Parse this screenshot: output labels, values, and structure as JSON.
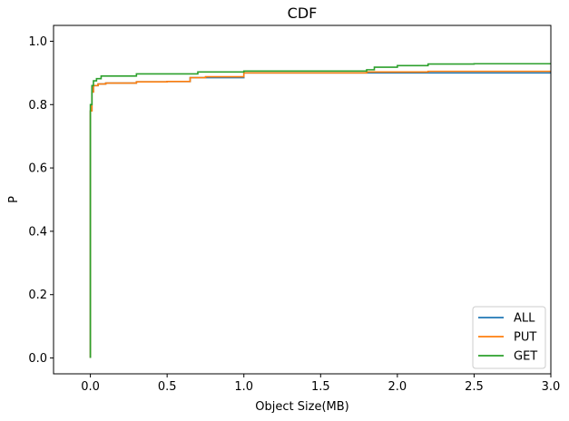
{
  "chart_data": {
    "type": "line",
    "title": "CDF",
    "xlabel": "Object Size(MB)",
    "ylabel": "P",
    "xlim": [
      -0.24,
      3.0
    ],
    "ylim": [
      -0.05,
      1.05
    ],
    "x_ticks": [
      0.0,
      0.5,
      1.0,
      1.5,
      2.0,
      2.5,
      3.0
    ],
    "x_tick_labels": [
      "0.0",
      "0.5",
      "1.0",
      "1.5",
      "2.0",
      "2.5",
      "3.0"
    ],
    "y_ticks": [
      0.0,
      0.2,
      0.4,
      0.6,
      0.8,
      1.0
    ],
    "y_tick_labels": [
      "0.0",
      "0.2",
      "0.4",
      "0.6",
      "0.8",
      "1.0"
    ],
    "grid": false,
    "legend_position": "lower-right",
    "series": [
      {
        "name": "ALL",
        "color": "#1f77b4",
        "step": true,
        "points": [
          [
            0.0,
            0.0
          ],
          [
            0.0,
            0.6
          ],
          [
            0.0,
            0.78
          ],
          [
            0.01,
            0.84
          ],
          [
            0.02,
            0.86
          ],
          [
            0.05,
            0.865
          ],
          [
            0.1,
            0.868
          ],
          [
            0.3,
            0.872
          ],
          [
            0.5,
            0.873
          ],
          [
            0.65,
            0.885
          ],
          [
            1.0,
            0.9
          ],
          [
            3.0,
            0.905
          ]
        ]
      },
      {
        "name": "PUT",
        "color": "#ff7f0e",
        "step": true,
        "points": [
          [
            0.0,
            0.0
          ],
          [
            0.0,
            0.6
          ],
          [
            0.0,
            0.78
          ],
          [
            0.01,
            0.84
          ],
          [
            0.02,
            0.86
          ],
          [
            0.05,
            0.865
          ],
          [
            0.1,
            0.868
          ],
          [
            0.3,
            0.872
          ],
          [
            0.5,
            0.873
          ],
          [
            0.65,
            0.885
          ],
          [
            0.75,
            0.888
          ],
          [
            1.0,
            0.9
          ],
          [
            1.8,
            0.903
          ],
          [
            2.2,
            0.905
          ],
          [
            3.0,
            0.907
          ]
        ]
      },
      {
        "name": "GET",
        "color": "#2ca02c",
        "step": true,
        "points": [
          [
            0.0,
            0.0
          ],
          [
            0.0,
            0.7
          ],
          [
            0.0,
            0.8
          ],
          [
            0.01,
            0.86
          ],
          [
            0.02,
            0.875
          ],
          [
            0.04,
            0.882
          ],
          [
            0.07,
            0.89
          ],
          [
            0.3,
            0.897
          ],
          [
            0.7,
            0.903
          ],
          [
            1.0,
            0.906
          ],
          [
            1.8,
            0.91
          ],
          [
            1.85,
            0.918
          ],
          [
            2.0,
            0.923
          ],
          [
            2.2,
            0.928
          ],
          [
            2.5,
            0.929
          ],
          [
            3.0,
            0.93
          ]
        ]
      }
    ]
  }
}
